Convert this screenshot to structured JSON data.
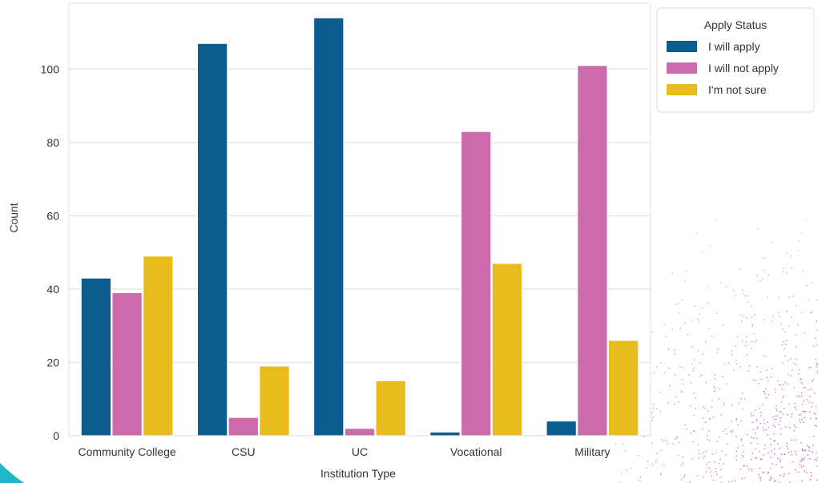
{
  "chart_data": {
    "type": "bar",
    "title": "",
    "xlabel": "Institution Type",
    "ylabel": "Count",
    "categories": [
      "Community College",
      "CSU",
      "UC",
      "Vocational",
      "Military"
    ],
    "series": [
      {
        "name": "I will apply",
        "color": "#0b5c8f",
        "values": [
          43,
          107,
          114,
          1,
          4
        ]
      },
      {
        "name": "I will not apply",
        "color": "#cc6aac",
        "values": [
          39,
          5,
          2,
          83,
          101
        ]
      },
      {
        "name": "I'm not sure",
        "color": "#e8bc1c",
        "values": [
          49,
          19,
          15,
          47,
          26
        ]
      }
    ],
    "ylim": [
      0,
      118
    ],
    "yticks": [
      "0",
      "20",
      "40",
      "60",
      "80",
      "100"
    ],
    "grid": true,
    "legend": {
      "title": "Apply Status",
      "placement": "outside-right-top"
    }
  },
  "colors": {
    "background": "#ffffff",
    "plot_background": "#ffffff",
    "grid": "#e6e6e6",
    "speckle": "#d24fae",
    "corner_accent": "#1fb6c9"
  }
}
